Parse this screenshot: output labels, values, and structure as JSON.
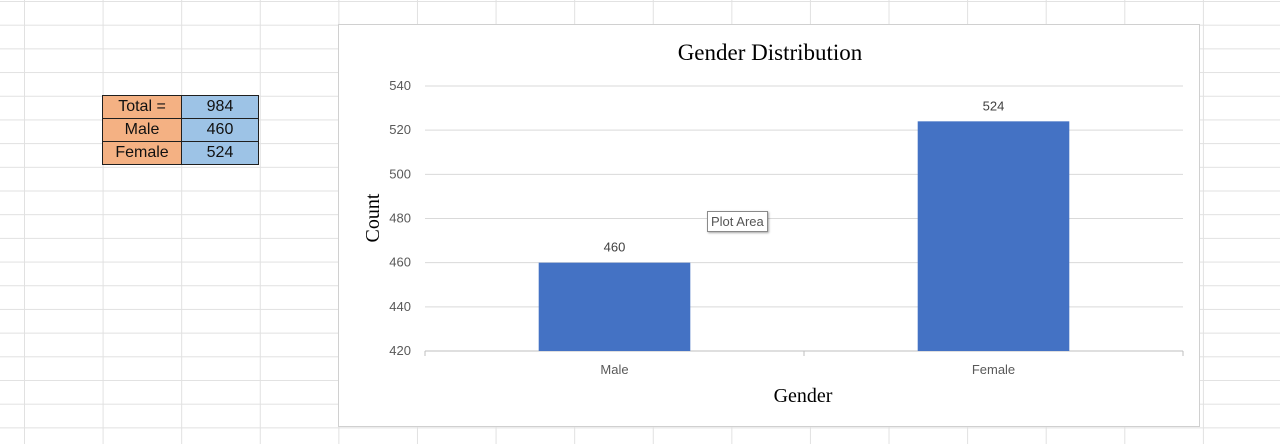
{
  "table": {
    "rows": [
      {
        "label": "Total =",
        "value": "984"
      },
      {
        "label": "Male",
        "value": "460"
      },
      {
        "label": "Female",
        "value": "524"
      }
    ]
  },
  "tooltip": "Plot Area",
  "chart_data": {
    "type": "bar",
    "title": "Gender Distribution",
    "xlabel": "Gender",
    "ylabel": "Count",
    "categories": [
      "Male",
      "Female"
    ],
    "values": [
      460,
      524
    ],
    "ylim": [
      420,
      540
    ],
    "yticks": [
      420,
      440,
      460,
      480,
      500,
      520,
      540
    ],
    "bar_color": "#4472c4",
    "grid": true,
    "legend": "none"
  }
}
